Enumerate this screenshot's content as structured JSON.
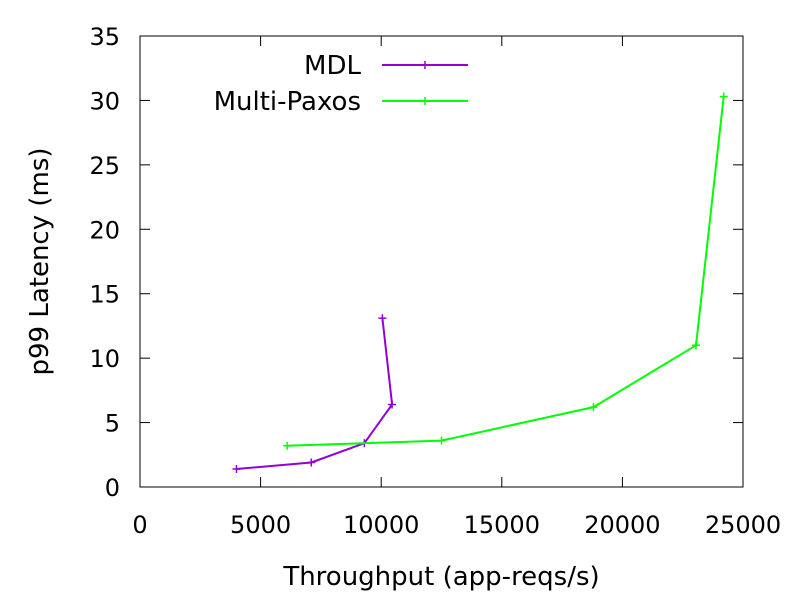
{
  "chart_data": {
    "type": "line",
    "title": "",
    "xlabel": "Throughput (app-reqs/s)",
    "ylabel": "p99 Latency (ms)",
    "xlim": [
      0,
      25000
    ],
    "ylim": [
      0,
      35
    ],
    "xticks": [
      0,
      5000,
      10000,
      15000,
      20000,
      25000
    ],
    "yticks": [
      0,
      5,
      10,
      15,
      20,
      25,
      30,
      35
    ],
    "xtick_labels": [
      "0",
      "5000",
      "10000",
      "15000",
      "20000",
      "25000"
    ],
    "ytick_labels": [
      "0",
      "5",
      "10",
      "15",
      "20",
      "25",
      "30",
      "35"
    ],
    "grid": false,
    "legend_position": "top-left",
    "series": [
      {
        "name": "MDL",
        "color": "#9400d3",
        "marker": "plus",
        "x": [
          4000,
          7100,
          9300,
          10450,
          10050
        ],
        "y": [
          1.4,
          1.9,
          3.4,
          6.4,
          13.1
        ]
      },
      {
        "name": "Multi-Paxos",
        "color": "#00ff00",
        "marker": "plus",
        "x": [
          6100,
          12500,
          18800,
          23050,
          24200
        ],
        "y": [
          3.2,
          3.6,
          6.2,
          11.0,
          30.3
        ]
      }
    ]
  }
}
